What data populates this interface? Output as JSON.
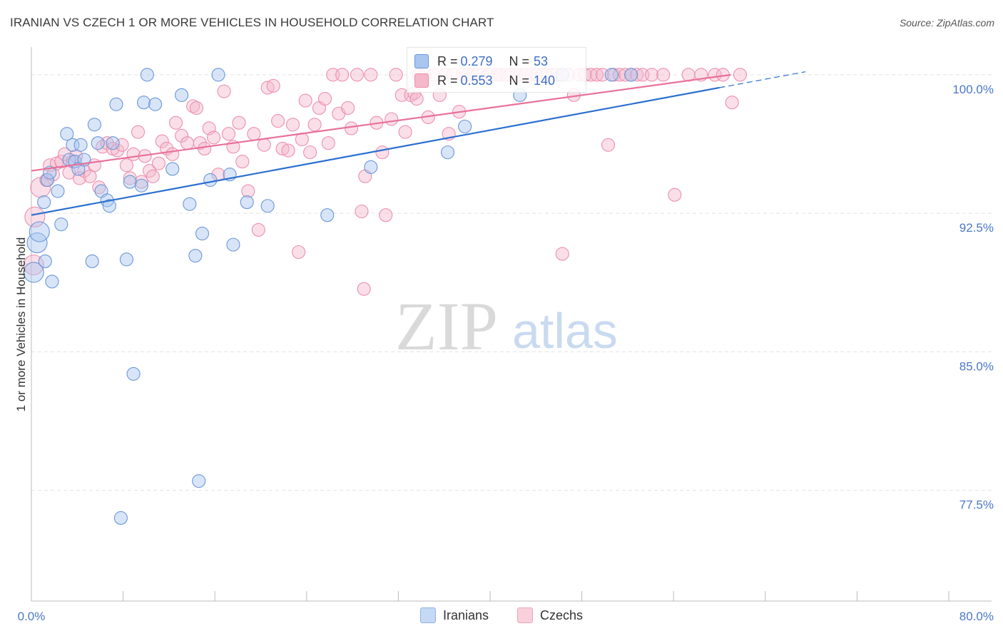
{
  "title": "IRANIAN VS CZECH 1 OR MORE VEHICLES IN HOUSEHOLD CORRELATION CHART",
  "source": "Source: ZipAtlas.com",
  "watermark": {
    "zip": "ZIP",
    "atlas": "atlas"
  },
  "stats": {
    "iranians": {
      "r_label": "R =",
      "r": "0.279",
      "n_label": "N =",
      "n": "53"
    },
    "czechs": {
      "r_label": "R =",
      "r": "0.553",
      "n_label": "N =",
      "n": "140"
    }
  },
  "legend": {
    "iranians": "Iranians",
    "czechs": "Czechs"
  },
  "colors": {
    "iranian_fill": "#a9c6ef",
    "iranian_stroke": "#6a97d8",
    "iranian_line": "#2a6fd0",
    "czech_fill": "#f5b8cb",
    "czech_stroke": "#ec8fae",
    "czech_line": "#e8719a",
    "tick_label": "#4a78c8",
    "grid": "#e2e2e2"
  },
  "chart_data": {
    "type": "scatter",
    "title": "IRANIAN VS CZECH 1 OR MORE VEHICLES IN HOUSEHOLD CORRELATION CHART",
    "xlabel": "",
    "ylabel": "1 or more Vehicles in Household",
    "xlim": [
      0,
      80
    ],
    "ylim": [
      71.5,
      101.5
    ],
    "x_tick_labels": [
      "0.0%",
      "80.0%"
    ],
    "y_ticks": [
      77.5,
      85.0,
      92.5,
      100.0
    ],
    "y_tick_labels": [
      "77.5%",
      "85.0%",
      "92.5%",
      "100.0%"
    ],
    "grid": true,
    "legend_position": "bottom-center",
    "series": [
      {
        "name": "Iranians",
        "points": [
          [
            0.2,
            89.3
          ],
          [
            0.5,
            90.9
          ],
          [
            0.7,
            91.5
          ],
          [
            1.1,
            93.1
          ],
          [
            1.2,
            89.9
          ],
          [
            1.4,
            94.3
          ],
          [
            1.6,
            94.7
          ],
          [
            1.8,
            88.8
          ],
          [
            2.3,
            93.7
          ],
          [
            2.6,
            91.9
          ],
          [
            3.1,
            96.8
          ],
          [
            3.3,
            95.4
          ],
          [
            3.6,
            96.2
          ],
          [
            3.8,
            95.3
          ],
          [
            4.1,
            94.9
          ],
          [
            4.3,
            96.2
          ],
          [
            4.6,
            95.4
          ],
          [
            5.3,
            89.9
          ],
          [
            5.5,
            97.3
          ],
          [
            5.8,
            96.3
          ],
          [
            6.1,
            93.7
          ],
          [
            6.6,
            93.2
          ],
          [
            6.8,
            92.9
          ],
          [
            7.1,
            96.3
          ],
          [
            7.4,
            98.4
          ],
          [
            7.8,
            76.0
          ],
          [
            8.3,
            90.0
          ],
          [
            8.6,
            94.2
          ],
          [
            8.9,
            83.8
          ],
          [
            9.6,
            94.0
          ],
          [
            9.8,
            98.5
          ],
          [
            10.1,
            100.0
          ],
          [
            10.8,
            98.4
          ],
          [
            12.3,
            94.9
          ],
          [
            13.1,
            98.9
          ],
          [
            13.8,
            93.0
          ],
          [
            14.3,
            90.2
          ],
          [
            14.6,
            78.0
          ],
          [
            14.9,
            91.4
          ],
          [
            15.6,
            94.3
          ],
          [
            16.3,
            100.0
          ],
          [
            17.3,
            94.6
          ],
          [
            17.6,
            90.8
          ],
          [
            18.8,
            93.1
          ],
          [
            20.6,
            92.9
          ],
          [
            25.8,
            92.4
          ],
          [
            29.6,
            95.0
          ],
          [
            36.3,
            95.8
          ],
          [
            37.8,
            97.2
          ],
          [
            42.6,
            98.9
          ],
          [
            46.3,
            100.0
          ],
          [
            50.6,
            100.0
          ],
          [
            52.3,
            100.0
          ]
        ]
      },
      {
        "name": "Czechs",
        "points": [
          [
            0.2,
            89.7
          ],
          [
            0.3,
            92.3
          ],
          [
            0.8,
            93.9
          ],
          [
            1.3,
            94.3
          ],
          [
            1.6,
            95.1
          ],
          [
            1.9,
            94.6
          ],
          [
            2.2,
            95.2
          ],
          [
            2.6,
            95.3
          ],
          [
            2.9,
            95.7
          ],
          [
            3.3,
            94.7
          ],
          [
            3.6,
            95.3
          ],
          [
            3.9,
            95.6
          ],
          [
            4.2,
            94.4
          ],
          [
            4.6,
            94.8
          ],
          [
            5.1,
            94.5
          ],
          [
            5.5,
            95.1
          ],
          [
            5.9,
            93.9
          ],
          [
            6.2,
            96.1
          ],
          [
            6.6,
            96.3
          ],
          [
            7.1,
            96.0
          ],
          [
            7.5,
            95.9
          ],
          [
            7.9,
            96.2
          ],
          [
            8.3,
            95.1
          ],
          [
            8.6,
            94.4
          ],
          [
            8.9,
            95.7
          ],
          [
            9.3,
            96.9
          ],
          [
            9.6,
            94.2
          ],
          [
            9.9,
            95.6
          ],
          [
            10.3,
            94.8
          ],
          [
            10.6,
            94.5
          ],
          [
            11.1,
            95.2
          ],
          [
            11.4,
            96.4
          ],
          [
            11.8,
            96.0
          ],
          [
            12.3,
            95.7
          ],
          [
            12.6,
            97.4
          ],
          [
            13.1,
            96.7
          ],
          [
            13.6,
            96.3
          ],
          [
            14.1,
            98.3
          ],
          [
            14.4,
            98.2
          ],
          [
            14.7,
            96.3
          ],
          [
            15.1,
            96.0
          ],
          [
            15.5,
            97.1
          ],
          [
            15.9,
            96.6
          ],
          [
            16.3,
            94.6
          ],
          [
            16.8,
            99.1
          ],
          [
            17.2,
            96.8
          ],
          [
            17.6,
            96.1
          ],
          [
            18.1,
            97.4
          ],
          [
            18.4,
            95.3
          ],
          [
            18.9,
            93.7
          ],
          [
            19.4,
            96.8
          ],
          [
            19.8,
            91.6
          ],
          [
            20.3,
            96.2
          ],
          [
            20.6,
            99.3
          ],
          [
            21.1,
            99.4
          ],
          [
            21.5,
            97.5
          ],
          [
            21.9,
            96.0
          ],
          [
            22.4,
            95.9
          ],
          [
            22.8,
            97.3
          ],
          [
            23.3,
            90.4
          ],
          [
            23.6,
            96.5
          ],
          [
            23.9,
            98.6
          ],
          [
            24.3,
            95.8
          ],
          [
            24.7,
            97.3
          ],
          [
            25.1,
            98.2
          ],
          [
            25.6,
            98.7
          ],
          [
            25.9,
            96.3
          ],
          [
            26.3,
            100.0
          ],
          [
            26.8,
            97.9
          ],
          [
            27.1,
            100.0
          ],
          [
            27.6,
            98.2
          ],
          [
            27.9,
            97.1
          ],
          [
            28.4,
            100.0
          ],
          [
            28.8,
            92.6
          ],
          [
            29.1,
            94.5
          ],
          [
            29.6,
            100.0
          ],
          [
            30.1,
            97.4
          ],
          [
            30.6,
            95.8
          ],
          [
            30.9,
            92.4
          ],
          [
            31.4,
            97.6
          ],
          [
            31.8,
            100.0
          ],
          [
            32.3,
            98.9
          ],
          [
            32.6,
            96.9
          ],
          [
            33.1,
            98.9
          ],
          [
            33.4,
            99.0
          ],
          [
            33.8,
            100.0
          ],
          [
            34.3,
            100.0
          ],
          [
            34.6,
            97.7
          ],
          [
            35.1,
            100.0
          ],
          [
            35.6,
            98.9
          ],
          [
            36.1,
            100.0
          ],
          [
            36.4,
            96.8
          ],
          [
            36.8,
            100.0
          ],
          [
            37.3,
            98.0
          ],
          [
            37.6,
            100.0
          ],
          [
            38.1,
            100.0
          ],
          [
            38.5,
            100.0
          ],
          [
            38.9,
            100.0
          ],
          [
            39.3,
            100.0
          ],
          [
            39.8,
            100.0
          ],
          [
            40.1,
            100.0
          ],
          [
            40.6,
            100.0
          ],
          [
            40.9,
            100.0
          ],
          [
            41.4,
            100.0
          ],
          [
            41.8,
            100.0
          ],
          [
            42.3,
            100.0
          ],
          [
            42.6,
            100.0
          ],
          [
            43.1,
            100.0
          ],
          [
            43.6,
            100.0
          ],
          [
            44.0,
            100.0
          ],
          [
            44.5,
            100.0
          ],
          [
            44.9,
            100.0
          ],
          [
            45.4,
            100.0
          ],
          [
            45.8,
            100.0
          ],
          [
            46.3,
            100.0
          ],
          [
            46.8,
            100.0
          ],
          [
            47.3,
            98.9
          ],
          [
            47.8,
            100.0
          ],
          [
            48.3,
            100.0
          ],
          [
            48.8,
            100.0
          ],
          [
            49.3,
            100.0
          ],
          [
            49.8,
            100.0
          ],
          [
            50.3,
            96.2
          ],
          [
            50.8,
            100.0
          ],
          [
            51.3,
            100.0
          ],
          [
            51.8,
            100.0
          ],
          [
            52.3,
            100.0
          ],
          [
            52.8,
            100.0
          ],
          [
            53.3,
            100.0
          ],
          [
            54.1,
            100.0
          ],
          [
            55.1,
            100.0
          ],
          [
            56.1,
            93.5
          ],
          [
            57.3,
            100.0
          ],
          [
            58.4,
            100.0
          ],
          [
            59.6,
            100.0
          ],
          [
            60.3,
            100.0
          ],
          [
            61.1,
            98.5
          ],
          [
            61.8,
            100.0
          ],
          [
            46.3,
            90.3
          ],
          [
            29.0,
            88.4
          ],
          [
            33.6,
            98.7
          ]
        ]
      }
    ],
    "trend_lines": [
      {
        "name": "Iranians",
        "x": [
          0,
          60
        ],
        "y": [
          92.4,
          99.3
        ],
        "dashed_to_x": 67.5
      },
      {
        "name": "Czechs",
        "x": [
          0,
          61
        ],
        "y": [
          94.8,
          100.0
        ]
      }
    ]
  }
}
